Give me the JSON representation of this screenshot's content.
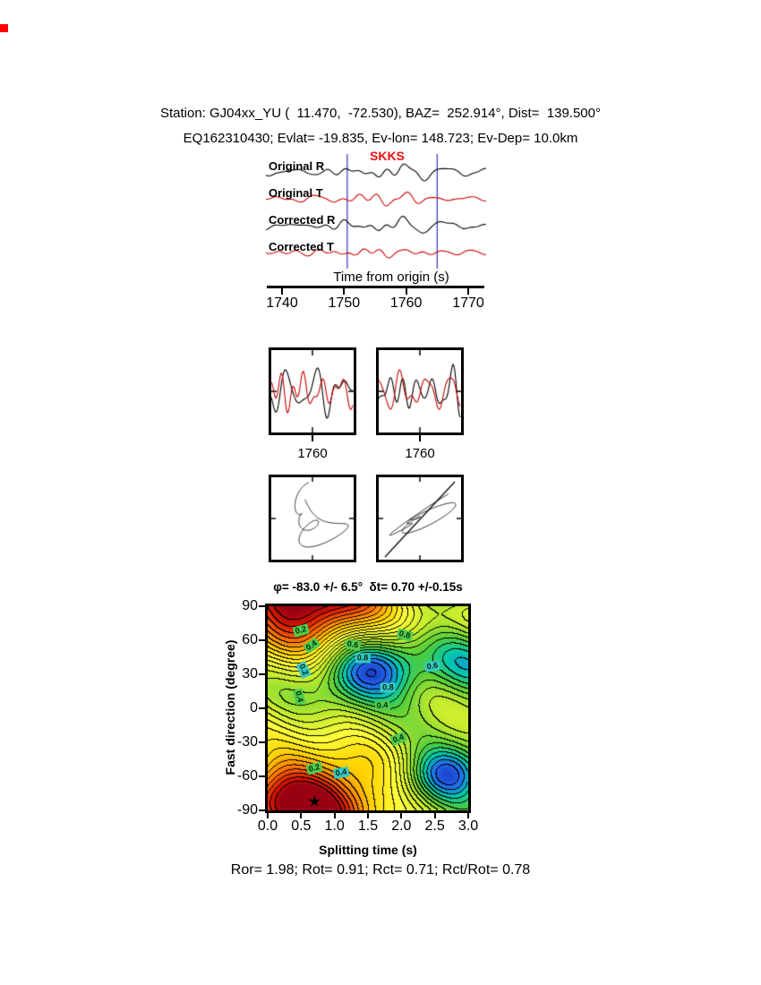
{
  "figure": {
    "background": "#ffffff",
    "corner_mark_color": "#ff0000"
  },
  "header": {
    "line1": "Station: GJ04xx_YU (  11.470,  -72.530), BAZ=  252.914°, Dist=  139.500°",
    "line2": "EQ162310430; Evlat= -19.835, Ev-lon= 148.723; Ev-Dep= 10.0km"
  },
  "waveforms": {
    "trace_labels": [
      "Original R",
      "Original T",
      "Corrected R",
      "Corrected T"
    ],
    "phase_label": "SKKS",
    "phase_label_color": "#ee1111",
    "r_color": "#000000",
    "t_color": "#cc0000",
    "window_color": "#4444bb",
    "window_times": [
      1750.5,
      1765.0
    ],
    "axis": {
      "label": "Time from origin (s)",
      "ticks": [
        1740,
        1750,
        1760,
        1770
      ]
    }
  },
  "zoom_panels": [
    {
      "tick_label": "1760"
    },
    {
      "tick_label": "1760"
    }
  ],
  "contour": {
    "title": "φ= -83.0 +/- 6.5°  δt= 0.70 +/-0.15s",
    "xlabel": "Splitting time (s)",
    "ylabel": "Fast direction (degree)",
    "x_ticks": [
      "0.0",
      "0.5",
      "1.0",
      "1.5",
      "2.0",
      "2.5",
      "3.0"
    ],
    "y_ticks": [
      "90",
      "60",
      "30",
      "0",
      "-30",
      "-60",
      "-90"
    ],
    "star": {
      "dt": 0.7,
      "phi": -83,
      "char": "★"
    },
    "labels": [
      {
        "v": "0.2",
        "dt": 0.5,
        "phi": 69,
        "bg": "#4ecb4e",
        "rot": -15
      },
      {
        "v": "0.4",
        "dt": 0.66,
        "phi": 55,
        "bg": "#4ecb4e",
        "rot": -35
      },
      {
        "v": "0.6",
        "dt": 1.27,
        "phi": 56,
        "bg": "#4ecb4e",
        "rot": 10
      },
      {
        "v": "0.8",
        "dt": 2.05,
        "phi": 65,
        "bg": "#4ecb4e",
        "rot": 15
      },
      {
        "v": "0.8",
        "dt": 1.42,
        "phi": 44,
        "bg": "#35c8c8",
        "rot": 0
      },
      {
        "v": "0.6",
        "dt": 2.47,
        "phi": 37,
        "bg": "#35c8c8",
        "rot": -10
      },
      {
        "v": "0.2",
        "dt": 0.53,
        "phi": 34,
        "bg": "#35c8c8",
        "rot": 65
      },
      {
        "v": "0.4",
        "dt": 0.47,
        "phi": 10,
        "bg": "#4ecb4e",
        "rot": 75
      },
      {
        "v": "0.8",
        "dt": 1.8,
        "phi": 18,
        "bg": "#35c8c8",
        "rot": 0
      },
      {
        "v": "0.4",
        "dt": 1.72,
        "phi": 2,
        "bg": "#4ecb4e",
        "rot": -5
      },
      {
        "v": "0.4",
        "dt": 1.95,
        "phi": -27,
        "bg": "#4ecb4e",
        "rot": -20
      },
      {
        "v": "0.2",
        "dt": 0.7,
        "phi": -53,
        "bg": "#4ecb4e",
        "rot": -15
      },
      {
        "v": "0.4",
        "dt": 1.1,
        "phi": -57,
        "bg": "#35c8c8",
        "rot": -10
      }
    ]
  },
  "results": {
    "line": "Ror= 1.98; Rot= 0.91; Rct= 0.71; Rct/Rot= 0.78"
  },
  "chart_data": [
    {
      "type": "line",
      "title": "Seismogram traces (radial/transverse, original and corrected)",
      "xlabel": "Time from origin (s)",
      "x_range": [
        1737,
        1773
      ],
      "x_ticks": [
        1740,
        1750,
        1760,
        1770
      ],
      "series": [
        {
          "name": "Original R",
          "color": "#000000"
        },
        {
          "name": "Original T",
          "color": "#cc0000"
        },
        {
          "name": "Corrected R",
          "color": "#000000"
        },
        {
          "name": "Corrected T",
          "color": "#cc0000"
        }
      ],
      "phase_marker": "SKKS",
      "analysis_window": [
        1750.5,
        1765.0
      ]
    },
    {
      "type": "line",
      "title": "Windowed waveforms, R (black) and T (red) overlaid",
      "panels": 2,
      "x_ticks": [
        1760
      ]
    },
    {
      "type": "scatter",
      "title": "Particle motion, original (left) and corrected (right)",
      "panels": 2
    },
    {
      "type": "heatmap",
      "title": "Splitting-parameter misfit surface with contours",
      "xlabel": "Splitting time (s)",
      "ylabel": "Fast direction (degree)",
      "x_range": [
        0,
        3
      ],
      "y_range": [
        -90,
        90
      ],
      "x_ticks": [
        0.0,
        0.5,
        1.0,
        1.5,
        2.0,
        2.5,
        3.0
      ],
      "y_ticks": [
        90,
        60,
        30,
        0,
        -30,
        -60,
        -90
      ],
      "labeled_contour_levels": [
        0.2,
        0.4,
        0.6,
        0.8
      ],
      "best_solution": {
        "splitting_time_s": 0.7,
        "splitting_time_err_s": 0.15,
        "fast_direction_deg": -83.0,
        "fast_direction_err_deg": 6.5
      },
      "quality_ratios": {
        "Ror": 1.98,
        "Rot": 0.91,
        "Rct": 0.71,
        "Rct_over_Rot": 0.78
      }
    }
  ]
}
